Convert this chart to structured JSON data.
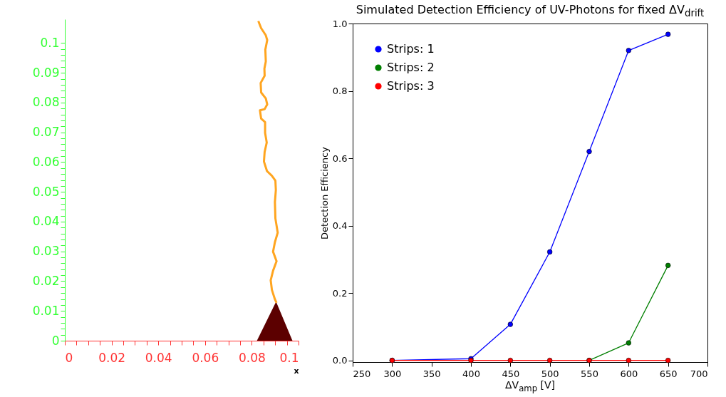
{
  "chart_data": [
    {
      "type": "line",
      "xlabel": "x",
      "xlim": [
        0,
        0.1
      ],
      "ylim": [
        0,
        0.108
      ],
      "xticks": [
        0,
        {
          "value": 0.005,
          "label": null
        },
        {
          "value": 0.01,
          "label": null
        },
        {
          "value": 0.015,
          "label": null
        },
        0.02,
        {
          "value": 0.025,
          "label": null
        },
        {
          "value": 0.03,
          "label": null
        },
        {
          "value": 0.035,
          "label": null
        },
        0.04,
        {
          "value": 0.045,
          "label": null
        },
        {
          "value": 0.05,
          "label": null
        },
        {
          "value": 0.055,
          "label": null
        },
        0.06,
        {
          "value": 0.065,
          "label": null
        },
        {
          "value": 0.07,
          "label": null
        },
        {
          "value": 0.075,
          "label": null
        },
        0.08,
        {
          "value": 0.085,
          "label": null
        },
        {
          "value": 0.09,
          "label": null
        },
        {
          "value": 0.095,
          "label": null
        },
        0.1
      ],
      "yticks": [
        0,
        {
          "value": 0.002,
          "label": null
        },
        {
          "value": 0.004,
          "label": null
        },
        {
          "value": 0.006,
          "label": null
        },
        {
          "value": 0.008,
          "label": null
        },
        0.01,
        {
          "value": 0.012,
          "label": null
        },
        {
          "value": 0.014,
          "label": null
        },
        {
          "value": 0.016,
          "label": null
        },
        {
          "value": 0.018,
          "label": null
        },
        0.02,
        {
          "value": 0.022,
          "label": null
        },
        {
          "value": 0.024,
          "label": null
        },
        {
          "value": 0.026,
          "label": null
        },
        {
          "value": 0.028,
          "label": null
        },
        0.03,
        {
          "value": 0.032,
          "label": null
        },
        {
          "value": 0.034,
          "label": null
        },
        {
          "value": 0.036,
          "label": null
        },
        {
          "value": 0.038,
          "label": null
        },
        0.04,
        {
          "value": 0.042,
          "label": null
        },
        {
          "value": 0.044,
          "label": null
        },
        {
          "value": 0.046,
          "label": null
        },
        {
          "value": 0.048,
          "label": null
        },
        0.05,
        {
          "value": 0.052,
          "label": null
        },
        {
          "value": 0.054,
          "label": null
        },
        {
          "value": 0.056,
          "label": null
        },
        {
          "value": 0.058,
          "label": null
        },
        0.06,
        {
          "value": 0.062,
          "label": null
        },
        {
          "value": 0.064,
          "label": null
        },
        {
          "value": 0.066,
          "label": null
        },
        {
          "value": 0.068,
          "label": null
        },
        0.07,
        {
          "value": 0.072,
          "label": null
        },
        {
          "value": 0.074,
          "label": null
        },
        {
          "value": 0.076,
          "label": null
        },
        {
          "value": 0.078,
          "label": null
        },
        0.08,
        {
          "value": 0.082,
          "label": null
        },
        {
          "value": 0.084,
          "label": null
        },
        {
          "value": 0.086,
          "label": null
        },
        {
          "value": 0.088,
          "label": null
        },
        0.09,
        {
          "value": 0.092,
          "label": null
        },
        {
          "value": 0.094,
          "label": null
        },
        {
          "value": 0.096,
          "label": null
        },
        {
          "value": 0.098,
          "label": null
        },
        0.1
      ],
      "grid": false,
      "marker": "none",
      "line_style": "solid",
      "series": [
        {
          "type": "area",
          "color": "#5c0000",
          "x": [
            0.0822,
            0.0904,
            0.0974
          ],
          "values": [
            0,
            0.0131,
            0
          ]
        },
        {
          "color": "#ffa520",
          "x": [
            0.0906,
            0.0899,
            0.0886,
            0.0881,
            0.0891,
            0.0906,
            0.0891,
            0.0899,
            0.0911,
            0.0901,
            0.0899,
            0.0903,
            0.0901,
            0.0886,
            0.0865,
            0.0852,
            0.0855,
            0.0864,
            0.0857,
            0.0857,
            0.084,
            0.0835,
            0.0855,
            0.0866,
            0.086,
            0.084,
            0.0838,
            0.0855,
            0.0854,
            0.086,
            0.0858,
            0.0866,
            0.086,
            0.084,
            0.0828
          ],
          "values": [
            0.0127,
            0.0139,
            0.0171,
            0.0203,
            0.0235,
            0.0267,
            0.0299,
            0.0331,
            0.0363,
            0.0411,
            0.0466,
            0.0506,
            0.0538,
            0.0554,
            0.057,
            0.0602,
            0.0634,
            0.0666,
            0.0698,
            0.0734,
            0.0746,
            0.0774,
            0.0778,
            0.0794,
            0.0814,
            0.0834,
            0.0866,
            0.089,
            0.0914,
            0.0938,
            0.0978,
            0.101,
            0.1026,
            0.105,
            0.1074
          ]
        }
      ]
    },
    {
      "type": "line",
      "title": "Simulated Detection Efficiency of UV-Photons for fixed ΔV$_{drift}$",
      "xlabel": "ΔV$_{amp}$ [V]",
      "ylabel": "Detection Efficiency",
      "x": [
        300,
        400,
        450,
        500,
        550,
        600,
        650
      ],
      "xlim": [
        250,
        700
      ],
      "ylim": [
        -0.005,
        1.0
      ],
      "xticks": [
        250,
        300,
        350,
        400,
        450,
        500,
        550,
        600,
        650,
        700
      ],
      "yticks": [
        {
          "value": 0,
          "label": "0.0"
        },
        0.2,
        0.4,
        0.6,
        0.8,
        {
          "value": 1,
          "label": "1.0"
        }
      ],
      "grid": false,
      "legend": "top left",
      "marker": "circle",
      "line_style": "solid",
      "series": [
        {
          "name": "Strips: 1",
          "color": "#0000ff",
          "values": [
            0,
            0.005,
            0.107,
            0.322,
            0.62,
            0.92,
            0.968
          ]
        },
        {
          "name": "Strips: 2",
          "color": "#007f00",
          "values": [
            null,
            null,
            null,
            null,
            0,
            0.052,
            0.282
          ]
        },
        {
          "name": "Strips: 3",
          "color": "#ff0000",
          "values": [
            0,
            0,
            0,
            0,
            0,
            0,
            0
          ]
        }
      ]
    }
  ]
}
